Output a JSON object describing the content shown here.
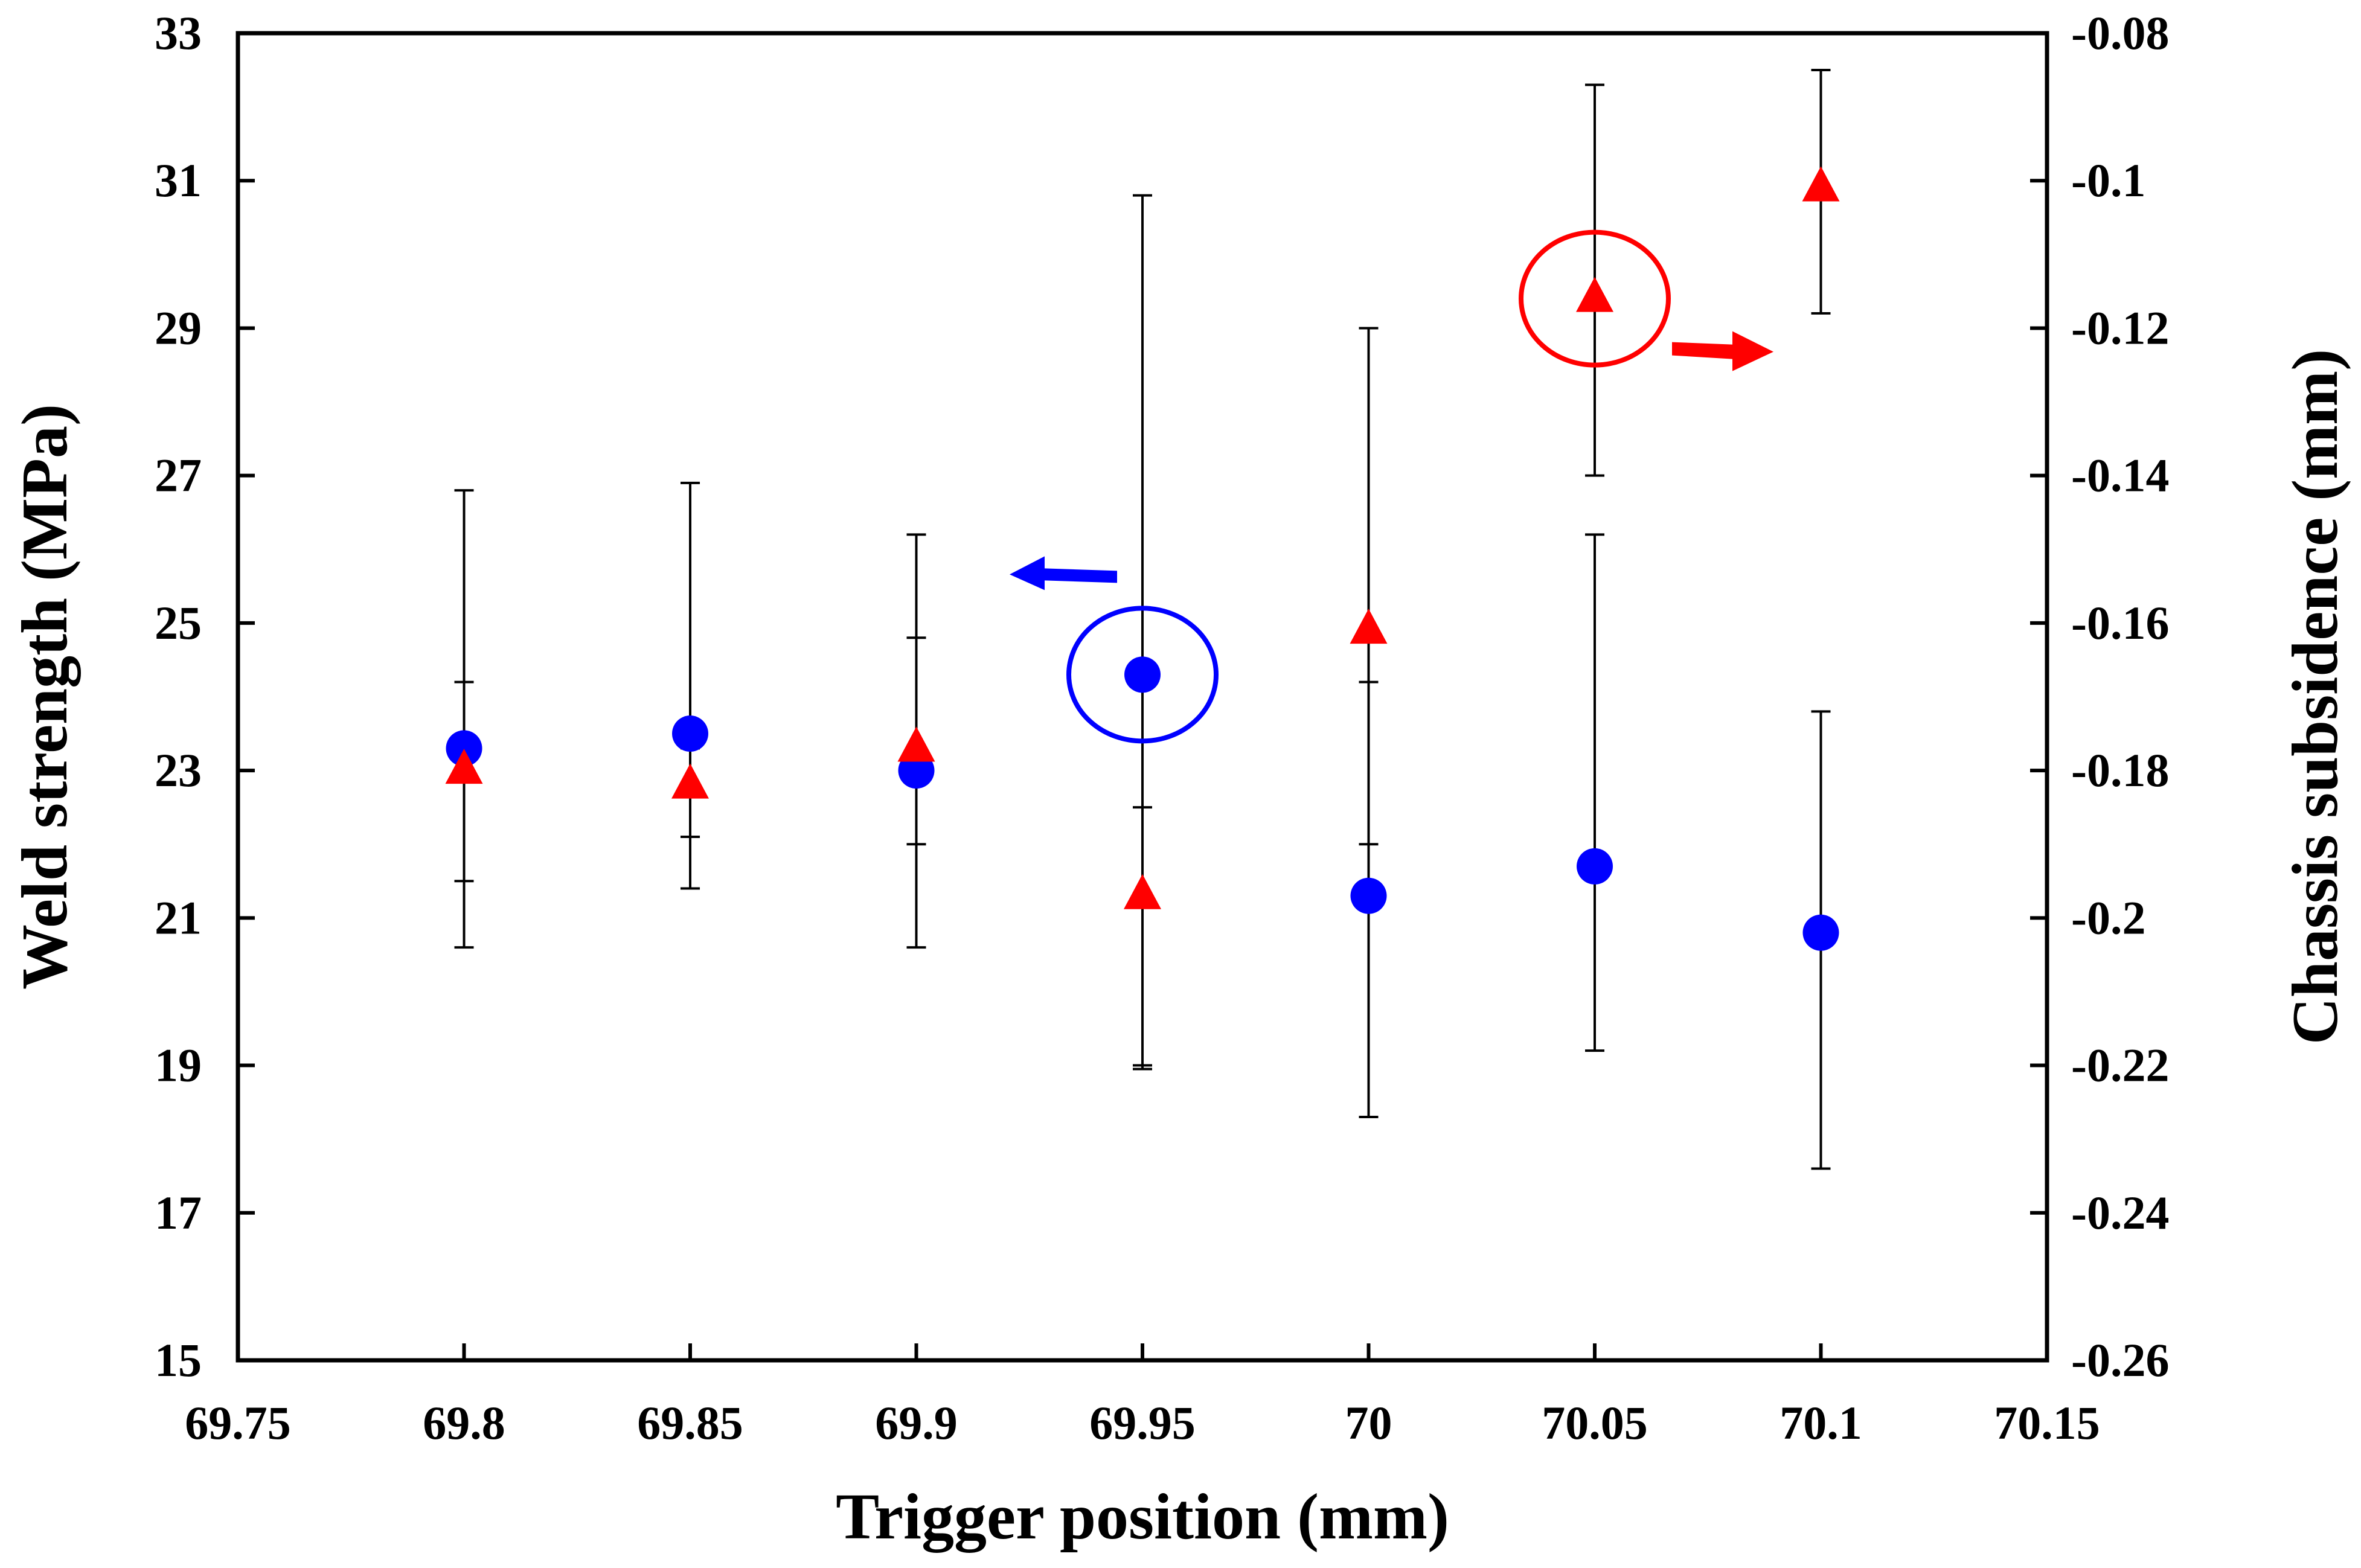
{
  "chart_data": {
    "type": "scatter",
    "title": "",
    "xlabel": "Trigger position (mm)",
    "ylabel_left": "Weld strength (MPa)",
    "ylabel_right": "Chassis subsidence (mm)",
    "xlim": [
      69.75,
      70.15
    ],
    "ylim_left": [
      15,
      33
    ],
    "ylim_right": [
      -0.26,
      -0.08
    ],
    "x_ticks": [
      "69.75",
      "69.8",
      "69.85",
      "69.9",
      "69.95",
      "70",
      "70.05",
      "70.1",
      "70.15"
    ],
    "y_left_ticks": [
      "15",
      "17",
      "19",
      "21",
      "23",
      "25",
      "27",
      "29",
      "31",
      "33"
    ],
    "y_right_ticks": [
      "-0.26",
      "-0.24",
      "-0.22",
      "-0.2",
      "-0.18",
      "-0.16",
      "-0.14",
      "-0.12",
      "-0.1",
      "-0.08"
    ],
    "grid": false,
    "series": [
      {
        "axis": "left",
        "marker": "circle",
        "color": "#0000ff",
        "points": [
          {
            "x": 69.8,
            "y": 23.3,
            "err_low": 20.6,
            "err_high": 26.8
          },
          {
            "x": 69.85,
            "y": 23.5,
            "err_low": 21.4,
            "err_high": 26.9
          },
          {
            "x": 69.9,
            "y": 23.0,
            "err_low": 20.6,
            "err_high": 26.2
          },
          {
            "x": 69.95,
            "y": 24.3,
            "err_low": 18.95,
            "err_high": 30.8
          },
          {
            "x": 70.0,
            "y": 21.3,
            "err_low": 18.3,
            "err_high": 29.0
          },
          {
            "x": 70.05,
            "y": 21.7,
            "err_low": 19.2,
            "err_high": 26.2
          },
          {
            "x": 70.1,
            "y": 20.8,
            "err_low": 17.6,
            "err_high": 23.8
          }
        ]
      },
      {
        "axis": "right",
        "marker": "triangle",
        "color": "#ff0000",
        "points": [
          {
            "x": 69.8,
            "y": -0.18,
            "err_low": -0.195,
            "err_high": -0.168
          },
          {
            "x": 69.85,
            "y": -0.182,
            "err_low": -0.189,
            "err_high": -0.177
          },
          {
            "x": 69.9,
            "y": -0.177,
            "err_low": -0.19,
            "err_high": -0.162
          },
          {
            "x": 69.95,
            "y": -0.197,
            "err_low": -0.22,
            "err_high": -0.185
          },
          {
            "x": 70.0,
            "y": -0.161,
            "err_low": -0.19,
            "err_high": -0.168
          },
          {
            "x": 70.05,
            "y": -0.116,
            "err_low": -0.14,
            "err_high": -0.087
          },
          {
            "x": 70.1,
            "y": -0.101,
            "err_low": -0.118,
            "err_high": -0.085
          }
        ]
      }
    ],
    "annotations": [
      {
        "type": "ellipse",
        "color": "#0000ff",
        "x": 69.95,
        "axis": "left",
        "y": 24.3,
        "meaning": "highlights weld strength point, arrow points to left axis"
      },
      {
        "type": "ellipse",
        "color": "#ff0000",
        "x": 70.05,
        "axis": "right",
        "y": -0.116,
        "meaning": "highlights subsidence point, arrow points to right axis"
      }
    ]
  }
}
